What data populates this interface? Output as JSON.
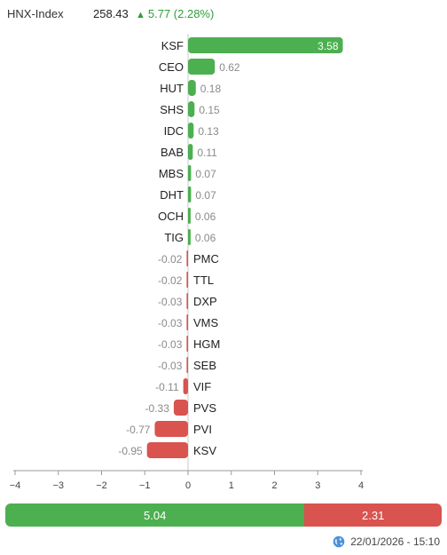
{
  "index": {
    "name": "HNX-Index",
    "value": "258.43",
    "change": "5.77 (2.28%)",
    "direction_icon": "up-triangle-icon",
    "up_color": "#4caf50",
    "down_color": "#d9534f"
  },
  "chart_data": {
    "type": "bar",
    "orientation": "horizontal",
    "categories": [
      "KSF",
      "CEO",
      "HUT",
      "SHS",
      "IDC",
      "BAB",
      "MBS",
      "DHT",
      "OCH",
      "TIG",
      "PMC",
      "TTL",
      "DXP",
      "VMS",
      "HGM",
      "SEB",
      "VIF",
      "PVS",
      "PVI",
      "KSV"
    ],
    "values": [
      3.58,
      0.62,
      0.18,
      0.15,
      0.13,
      0.11,
      0.07,
      0.07,
      0.06,
      0.06,
      -0.02,
      -0.02,
      -0.03,
      -0.03,
      -0.03,
      -0.03,
      -0.11,
      -0.33,
      -0.77,
      -0.95
    ],
    "value_labels": [
      "3.58",
      "0.62",
      "0.18",
      "0.15",
      "0.13",
      "0.11",
      "0.07",
      "0.07",
      "0.06",
      "0.06",
      "-0.02",
      "-0.02",
      "-0.03",
      "-0.03",
      "-0.03",
      "-0.03",
      "-0.11",
      "-0.33",
      "-0.77",
      "-0.95"
    ],
    "xlim": [
      -4,
      4
    ],
    "x_ticks": [
      -4,
      -3,
      -2,
      -1,
      0,
      1,
      2,
      3,
      4
    ],
    "x_tick_labels": [
      "−4",
      "−3",
      "−2",
      "−1",
      "0",
      "1",
      "2",
      "3",
      "4"
    ],
    "positive_color": "#4caf50",
    "negative_color": "#d9534f",
    "grid": false,
    "title": "",
    "xlabel": "",
    "ylabel": ""
  },
  "summary": {
    "up_total": "5.04",
    "down_total": "2.31",
    "up_fraction": 0.6857
  },
  "timestamp": {
    "icon": "globe-icon",
    "text": "22/01/2026 - 15:10"
  }
}
